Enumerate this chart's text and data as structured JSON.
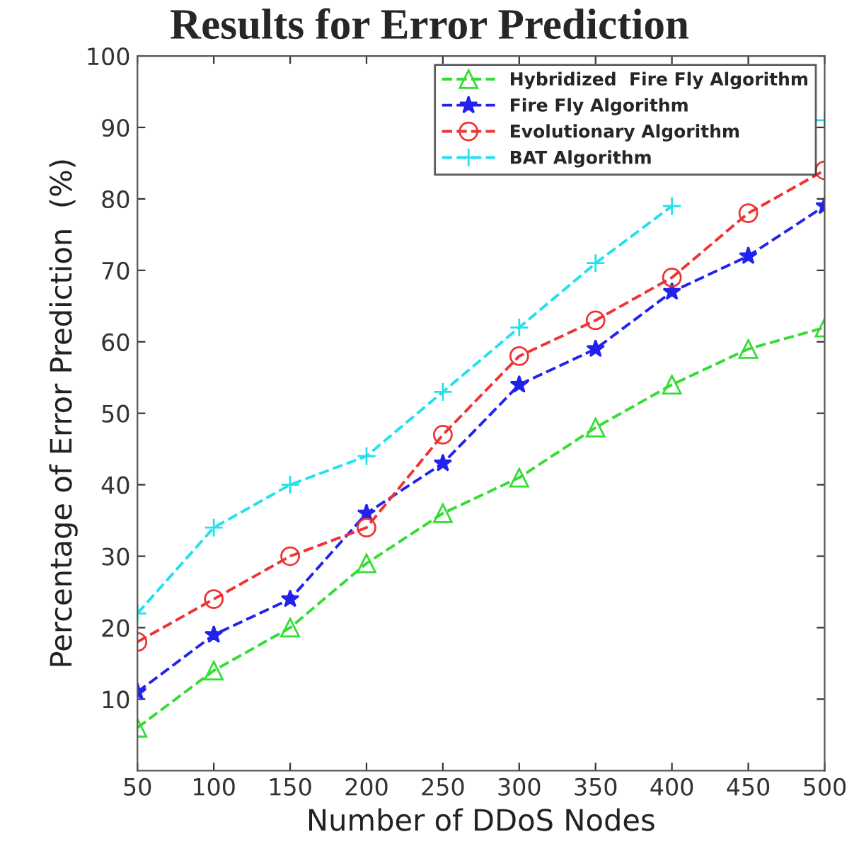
{
  "chart_data": {
    "type": "line",
    "title": "Results for Error Prediction",
    "xlabel": "Number of DDoS Nodes",
    "ylabel": "Percentage of Error Prediction  (%)",
    "x": [
      50,
      100,
      150,
      200,
      250,
      300,
      350,
      400,
      450,
      500
    ],
    "series": [
      {
        "name": "Hybridized  Fire Fly Algorithm",
        "color": "#33dd33",
        "marker": "triangle",
        "values": [
          6,
          14,
          20,
          29,
          36,
          41,
          48,
          54,
          59,
          62
        ]
      },
      {
        "name": "Fire Fly Algorithm",
        "color": "#2222ee",
        "marker": "star",
        "values": [
          11,
          19,
          24,
          36,
          43,
          54,
          59,
          67,
          72,
          79
        ]
      },
      {
        "name": "Evolutionary Algorithm",
        "color": "#ee3333",
        "marker": "circle",
        "values": [
          18,
          24,
          30,
          34,
          47,
          58,
          63,
          69,
          78,
          84
        ]
      },
      {
        "name": "BAT Algorithm",
        "color": "#22e0ee",
        "marker": "cross",
        "values": [
          22,
          34,
          40,
          44,
          53,
          62,
          71,
          79,
          null,
          91
        ]
      }
    ],
    "line_style": "dashed",
    "xlim": [
      50,
      500
    ],
    "ylim": [
      0,
      100
    ],
    "xticks": [
      50,
      100,
      150,
      200,
      250,
      300,
      350,
      400,
      450,
      500
    ],
    "yticks": [
      10,
      20,
      30,
      40,
      50,
      60,
      70,
      80,
      90,
      100
    ],
    "grid": false,
    "legend": "top right"
  }
}
